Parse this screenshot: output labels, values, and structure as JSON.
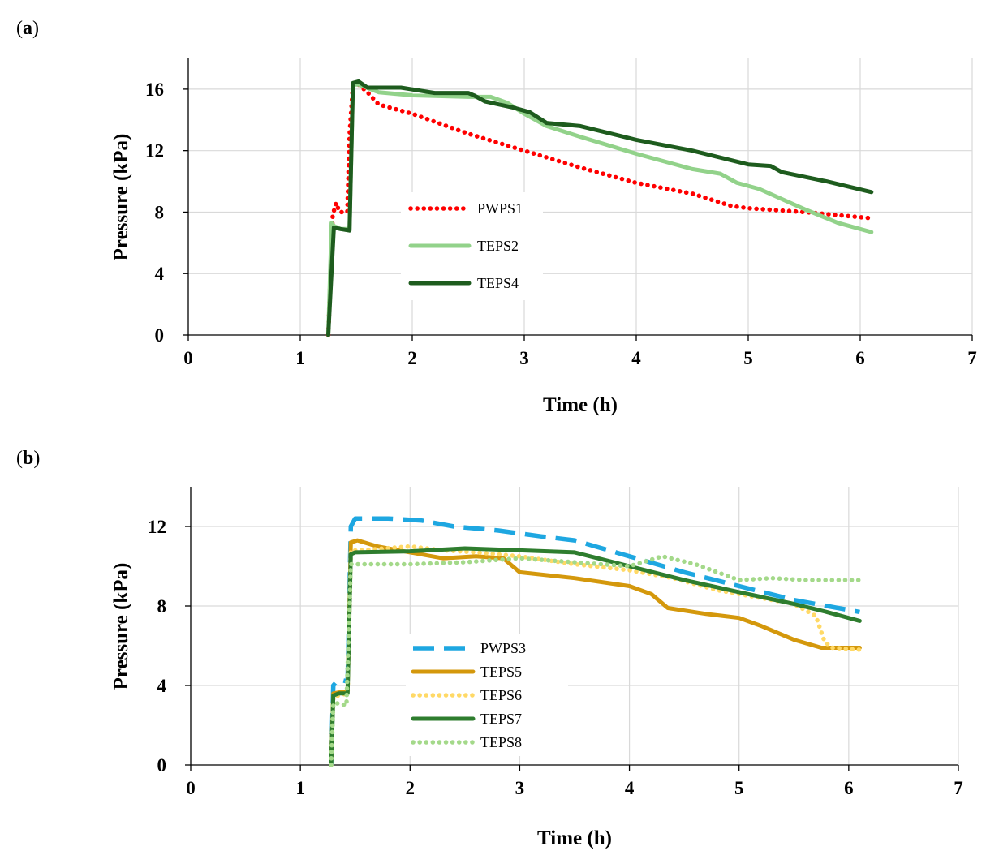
{
  "chart_data": [
    {
      "panel": "(a)",
      "panel_letter": "a",
      "type": "line",
      "xlabel": "Time (h)",
      "ylabel": "Pressure (kPa)",
      "xlim": [
        0,
        7
      ],
      "ylim": [
        0,
        18
      ],
      "xticks": [
        0,
        1,
        2,
        3,
        4,
        5,
        6,
        7
      ],
      "yticks": [
        0,
        4,
        8,
        12,
        16
      ],
      "grid": true,
      "legend": "center-left",
      "series": [
        {
          "name": "PWPS1",
          "color": "#ff0000",
          "style": "dotted",
          "points": [
            [
              1.25,
              0
            ],
            [
              1.29,
              7.8
            ],
            [
              1.32,
              8.6
            ],
            [
              1.35,
              8.0
            ],
            [
              1.42,
              8.0
            ],
            [
              1.44,
              13.0
            ],
            [
              1.47,
              16.2
            ],
            [
              1.52,
              16.3
            ],
            [
              1.6,
              15.8
            ],
            [
              1.7,
              15.0
            ],
            [
              2.0,
              14.4
            ],
            [
              2.5,
              13.1
            ],
            [
              3.0,
              12.0
            ],
            [
              3.5,
              10.9
            ],
            [
              4.0,
              9.9
            ],
            [
              4.5,
              9.2
            ],
            [
              4.85,
              8.4
            ],
            [
              5.0,
              8.25
            ],
            [
              5.5,
              8.0
            ],
            [
              6.1,
              7.6
            ]
          ]
        },
        {
          "name": "TEPS2",
          "color": "#92d28a",
          "style": "solid",
          "points": [
            [
              1.25,
              0
            ],
            [
              1.28,
              7.3
            ],
            [
              1.3,
              7.1
            ],
            [
              1.36,
              6.9
            ],
            [
              1.44,
              6.9
            ],
            [
              1.47,
              16.3
            ],
            [
              1.52,
              16.3
            ],
            [
              1.7,
              15.8
            ],
            [
              2.0,
              15.6
            ],
            [
              2.5,
              15.5
            ],
            [
              2.7,
              15.5
            ],
            [
              2.85,
              15.1
            ],
            [
              3.0,
              14.4
            ],
            [
              3.2,
              13.6
            ],
            [
              3.5,
              12.9
            ],
            [
              4.0,
              11.8
            ],
            [
              4.5,
              10.8
            ],
            [
              4.75,
              10.5
            ],
            [
              4.9,
              9.9
            ],
            [
              5.1,
              9.5
            ],
            [
              5.5,
              8.2
            ],
            [
              5.8,
              7.3
            ],
            [
              6.1,
              6.7
            ]
          ]
        },
        {
          "name": "TEPS4",
          "color": "#1e5c1e",
          "style": "solid",
          "points": [
            [
              1.25,
              0
            ],
            [
              1.3,
              7.0
            ],
            [
              1.36,
              6.9
            ],
            [
              1.44,
              6.8
            ],
            [
              1.47,
              16.4
            ],
            [
              1.52,
              16.5
            ],
            [
              1.6,
              16.1
            ],
            [
              1.9,
              16.1
            ],
            [
              2.2,
              15.75
            ],
            [
              2.5,
              15.75
            ],
            [
              2.55,
              15.6
            ],
            [
              2.65,
              15.2
            ],
            [
              2.9,
              14.8
            ],
            [
              3.05,
              14.5
            ],
            [
              3.2,
              13.8
            ],
            [
              3.5,
              13.6
            ],
            [
              4.0,
              12.7
            ],
            [
              4.5,
              12.0
            ],
            [
              5.0,
              11.1
            ],
            [
              5.2,
              11.0
            ],
            [
              5.3,
              10.6
            ],
            [
              5.7,
              10.0
            ],
            [
              6.1,
              9.3
            ]
          ]
        }
      ]
    },
    {
      "panel": "(b)",
      "panel_letter": "b",
      "type": "line",
      "xlabel": "Time (h)",
      "ylabel": "Pressure (kPa)",
      "xlim": [
        0,
        7
      ],
      "ylim": [
        0,
        14
      ],
      "xticks": [
        0,
        1,
        2,
        3,
        4,
        5,
        6,
        7
      ],
      "yticks": [
        0,
        4,
        8,
        12
      ],
      "grid": true,
      "legend": "center-left",
      "series": [
        {
          "name": "PWPS3",
          "color": "#1ea7e1",
          "style": "dashed",
          "points": [
            [
              1.28,
              0
            ],
            [
              1.3,
              4.0
            ],
            [
              1.35,
              4.3
            ],
            [
              1.43,
              4.2
            ],
            [
              1.46,
              12.0
            ],
            [
              1.5,
              12.4
            ],
            [
              1.8,
              12.4
            ],
            [
              2.1,
              12.3
            ],
            [
              2.4,
              12.0
            ],
            [
              2.8,
              11.8
            ],
            [
              3.2,
              11.5
            ],
            [
              3.5,
              11.3
            ],
            [
              4.0,
              10.5
            ],
            [
              4.5,
              9.7
            ],
            [
              5.0,
              9.0
            ],
            [
              5.5,
              8.3
            ],
            [
              5.8,
              8.0
            ],
            [
              6.1,
              7.7
            ]
          ]
        },
        {
          "name": "TEPS5",
          "color": "#d4980c",
          "style": "solid",
          "points": [
            [
              1.28,
              0
            ],
            [
              1.3,
              3.6
            ],
            [
              1.35,
              3.65
            ],
            [
              1.43,
              3.7
            ],
            [
              1.46,
              11.2
            ],
            [
              1.52,
              11.3
            ],
            [
              1.7,
              11.0
            ],
            [
              2.0,
              10.7
            ],
            [
              2.3,
              10.4
            ],
            [
              2.6,
              10.5
            ],
            [
              2.85,
              10.4
            ],
            [
              3.0,
              9.7
            ],
            [
              3.5,
              9.4
            ],
            [
              4.0,
              9.0
            ],
            [
              4.2,
              8.6
            ],
            [
              4.35,
              7.9
            ],
            [
              4.7,
              7.6
            ],
            [
              5.0,
              7.4
            ],
            [
              5.2,
              7.0
            ],
            [
              5.5,
              6.3
            ],
            [
              5.75,
              5.9
            ],
            [
              6.1,
              5.9
            ]
          ]
        },
        {
          "name": "TEPS6",
          "color": "#ffd966",
          "style": "dotted",
          "points": [
            [
              1.28,
              0
            ],
            [
              1.3,
              3.4
            ],
            [
              1.35,
              3.5
            ],
            [
              1.43,
              3.6
            ],
            [
              1.46,
              10.8
            ],
            [
              1.55,
              10.8
            ],
            [
              2.0,
              11.0
            ],
            [
              2.3,
              10.8
            ],
            [
              2.6,
              10.7
            ],
            [
              3.0,
              10.5
            ],
            [
              3.5,
              10.1
            ],
            [
              4.0,
              9.8
            ],
            [
              4.4,
              9.4
            ],
            [
              4.8,
              8.8
            ],
            [
              5.2,
              8.4
            ],
            [
              5.5,
              8.1
            ],
            [
              5.7,
              7.5
            ],
            [
              5.78,
              6.2
            ],
            [
              5.85,
              5.9
            ],
            [
              6.1,
              5.8
            ]
          ]
        },
        {
          "name": "TEPS7",
          "color": "#2e7d2e",
          "style": "solid",
          "points": [
            [
              1.28,
              0
            ],
            [
              1.3,
              3.5
            ],
            [
              1.35,
              3.6
            ],
            [
              1.43,
              3.6
            ],
            [
              1.46,
              10.6
            ],
            [
              1.5,
              10.7
            ],
            [
              2.0,
              10.75
            ],
            [
              2.5,
              10.9
            ],
            [
              3.0,
              10.8
            ],
            [
              3.5,
              10.7
            ],
            [
              4.0,
              10.0
            ],
            [
              4.5,
              9.3
            ],
            [
              5.0,
              8.7
            ],
            [
              5.5,
              8.1
            ],
            [
              5.8,
              7.7
            ],
            [
              6.1,
              7.25
            ]
          ]
        },
        {
          "name": "TEPS8",
          "color": "#a4d98a",
          "style": "dotted",
          "points": [
            [
              1.28,
              0
            ],
            [
              1.3,
              3.1
            ],
            [
              1.35,
              3.1
            ],
            [
              1.42,
              3.0
            ],
            [
              1.46,
              10.1
            ],
            [
              1.55,
              10.1
            ],
            [
              2.0,
              10.1
            ],
            [
              2.5,
              10.2
            ],
            [
              3.0,
              10.4
            ],
            [
              3.5,
              10.2
            ],
            [
              4.0,
              10.0
            ],
            [
              4.3,
              10.5
            ],
            [
              4.6,
              10.1
            ],
            [
              5.0,
              9.3
            ],
            [
              5.3,
              9.4
            ],
            [
              5.6,
              9.3
            ],
            [
              6.1,
              9.3
            ]
          ]
        }
      ]
    }
  ]
}
